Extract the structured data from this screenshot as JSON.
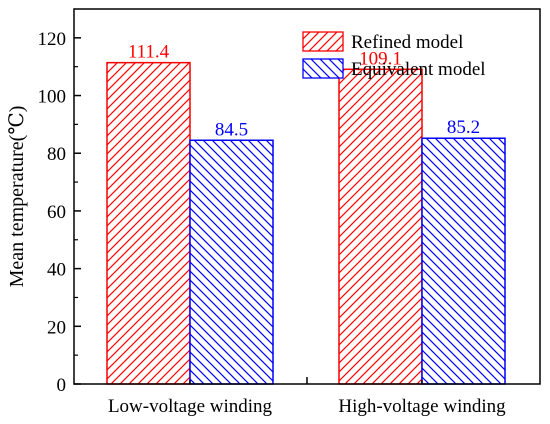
{
  "chart_data": {
    "type": "bar",
    "title": "",
    "xlabel": "",
    "ylabel": "Mean temperature(℃)",
    "categories": [
      "Low-voltage winding",
      "High-voltage winding"
    ],
    "series": [
      {
        "name": "Refined model",
        "values": [
          111.4,
          109.1
        ],
        "labels": [
          "111.4",
          "109.1"
        ],
        "color": "#ff0000",
        "hatch": "forward-diagonal"
      },
      {
        "name": "Equivalent model",
        "values": [
          84.5,
          85.2
        ],
        "labels": [
          "84.5",
          "85.2"
        ],
        "color": "#0000ff",
        "hatch": "backward-diagonal"
      }
    ],
    "ylim": [
      0,
      130
    ],
    "yticks": [
      0,
      20,
      40,
      60,
      80,
      100,
      120
    ],
    "grid": false,
    "legend_position": "top-right"
  }
}
